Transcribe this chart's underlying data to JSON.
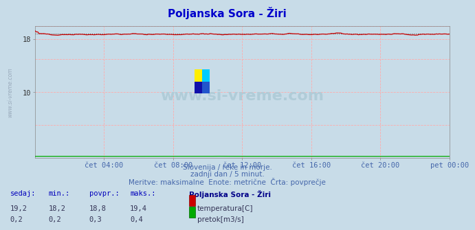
{
  "title": "Poljanska Sora - Žiri",
  "title_color": "#0000cc",
  "bg_color": "#c8dce8",
  "plot_bg_color": "#c8dce8",
  "grid_color": "#ffaaaa",
  "xlim": [
    0,
    288
  ],
  "ylim": [
    0,
    20
  ],
  "xtick_positions": [
    48,
    96,
    144,
    192,
    240,
    288
  ],
  "xtick_labels": [
    "čet 04:00",
    "čet 08:00",
    "čet 12:00",
    "čet 16:00",
    "čet 20:00",
    "pet 00:00"
  ],
  "temp_color": "#cc0000",
  "flow_color": "#00aa00",
  "avg_line_color": "#555555",
  "temp_avg": 18.8,
  "temp_min": 18.2,
  "temp_max": 19.4,
  "flow_avg": 0.3,
  "flow_min": 0.2,
  "flow_max": 0.4,
  "temp_current": 19.2,
  "flow_current": 0.2,
  "subtitle1": "Slovenija / reke in morje.",
  "subtitle2": "zadnji dan / 5 minut.",
  "subtitle3": "Meritve: maksimalne  Enote: metrične  Črta: povprečje",
  "subtitle_color": "#4466aa",
  "table_headers": [
    "sedaj:",
    "min.:",
    "povpr.:",
    "maks.:",
    "Poljanska Sora - Žiri"
  ],
  "table_row1": [
    "19,2",
    "18,2",
    "18,8",
    "19,4"
  ],
  "table_row2": [
    "0,2",
    "0,2",
    "0,3",
    "0,4"
  ],
  "label_temp": "temperatura[C]",
  "label_flow": "pretok[m3/s]",
  "watermark": "www.si-vreme.com",
  "watermark_color": "#b0ccd8",
  "left_label": "www.si-vreme.com",
  "left_label_color": "#99aabb",
  "icon_colors": [
    "#ffee00",
    "#00ccff",
    "#1010aa",
    "#2255cc"
  ]
}
